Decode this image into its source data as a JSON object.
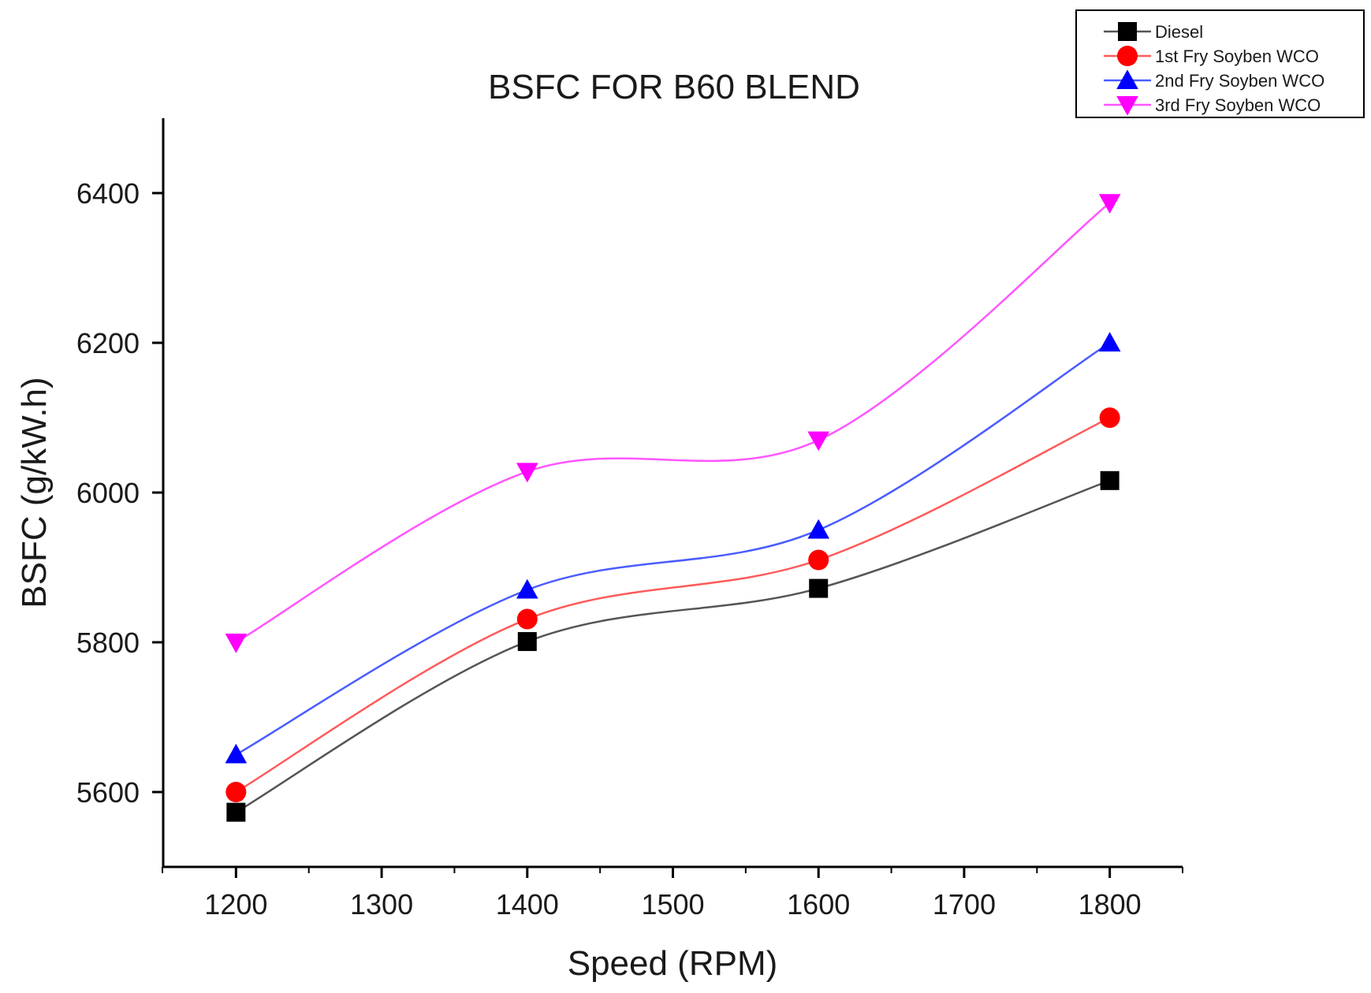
{
  "chart_data": {
    "type": "line",
    "title": "BSFC FOR B60 BLEND",
    "xlabel": "Speed (RPM)",
    "ylabel": "BSFC (g/kW.h)",
    "x": [
      1200,
      1400,
      1600,
      1800
    ],
    "xlim": [
      1150,
      1850
    ],
    "ylim": [
      5500,
      6500
    ],
    "xticks": [
      1200,
      1300,
      1400,
      1500,
      1600,
      1700,
      1800
    ],
    "yticks": [
      5600,
      5800,
      6000,
      6200,
      6400
    ],
    "grid": false,
    "legend_position": "top-right",
    "series": [
      {
        "name": "Diesel",
        "marker": "square",
        "color": "#000000",
        "line_color": "#555555",
        "values": [
          5573,
          5801,
          5872,
          6016
        ]
      },
      {
        "name": "1st Fry Soyben WCO",
        "marker": "circle",
        "color": "#ff0000",
        "line_color": "#ff5a5a",
        "values": [
          5600,
          5831,
          5910,
          6100
        ]
      },
      {
        "name": "2nd Fry Soyben WCO",
        "marker": "triangle-up",
        "color": "#0000ff",
        "line_color": "#4a5cff",
        "values": [
          5650,
          5870,
          5950,
          6200
        ]
      },
      {
        "name": "3rd Fry Soyben WCO",
        "marker": "triangle-down",
        "color": "#ff00ff",
        "line_color": "#ff55ff",
        "values": [
          5800,
          6028,
          6070,
          6387
        ]
      }
    ]
  }
}
